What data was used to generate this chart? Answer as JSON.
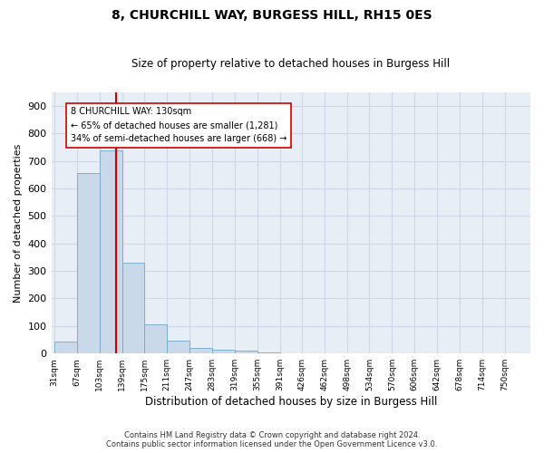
{
  "title1": "8, CHURCHILL WAY, BURGESS HILL, RH15 0ES",
  "title2": "Size of property relative to detached houses in Burgess Hill",
  "xlabel": "Distribution of detached houses by size in Burgess Hill",
  "ylabel": "Number of detached properties",
  "footer1": "Contains HM Land Registry data © Crown copyright and database right 2024.",
  "footer2": "Contains public sector information licensed under the Open Government Licence v3.0.",
  "bin_labels": [
    "31sqm",
    "67sqm",
    "103sqm",
    "139sqm",
    "175sqm",
    "211sqm",
    "247sqm",
    "283sqm",
    "319sqm",
    "355sqm",
    "391sqm",
    "426sqm",
    "462sqm",
    "498sqm",
    "534sqm",
    "570sqm",
    "606sqm",
    "642sqm",
    "678sqm",
    "714sqm",
    "750sqm"
  ],
  "bin_edges": [
    31,
    67,
    103,
    139,
    175,
    211,
    247,
    283,
    319,
    355,
    391,
    426,
    462,
    498,
    534,
    570,
    606,
    642,
    678,
    714,
    750
  ],
  "bar_values": [
    45,
    655,
    740,
    330,
    105,
    48,
    22,
    15,
    10,
    5,
    0,
    0,
    0,
    0,
    0,
    0,
    0,
    0,
    0,
    0
  ],
  "bar_color": "#c9d9ea",
  "bar_edge_color": "#6fa8c8",
  "property_sqm": 130,
  "vline_color": "#cc0000",
  "annotation_line1": "8 CHURCHILL WAY: 130sqm",
  "annotation_line2": "← 65% of detached houses are smaller (1,281)",
  "annotation_line3": "34% of semi-detached houses are larger (668) →",
  "annotation_box_color": "#ffffff",
  "annotation_box_edge": "#cc0000",
  "grid_color": "#d0d8e8",
  "background_color": "#e8eef5",
  "ylim": [
    0,
    950
  ],
  "yticks": [
    0,
    100,
    200,
    300,
    400,
    500,
    600,
    700,
    800,
    900
  ],
  "bin_width": 36
}
